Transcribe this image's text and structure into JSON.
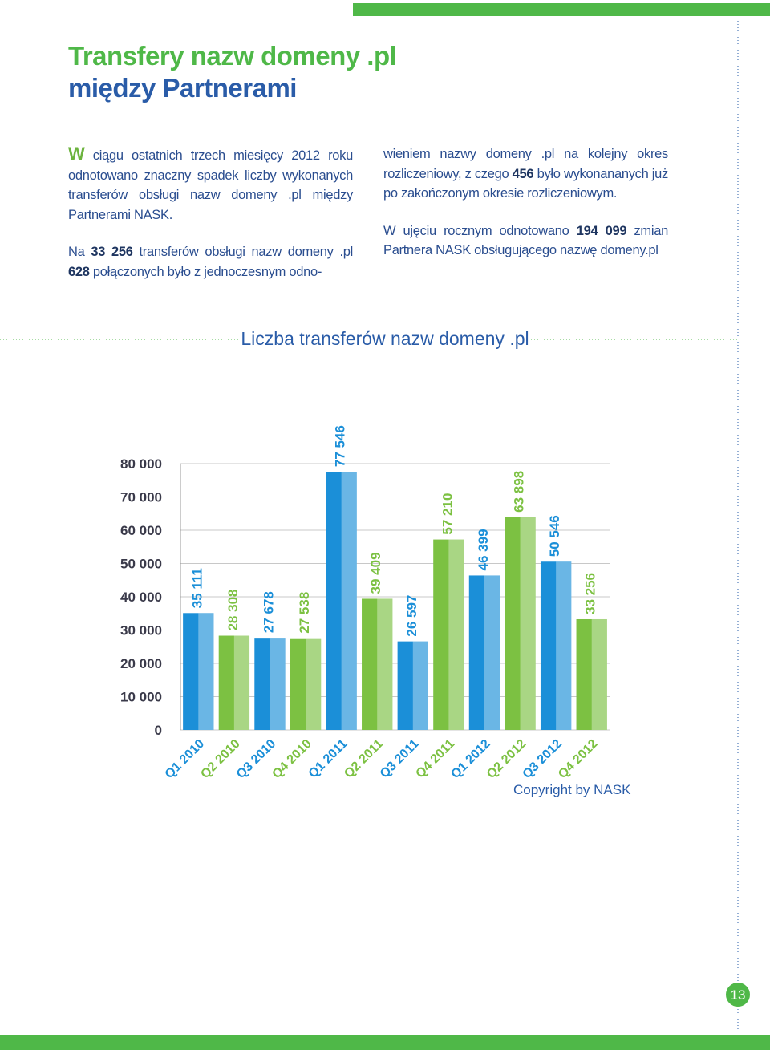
{
  "header": {
    "title_line1": "Transfery nazw domeny .pl",
    "title_line2": "między Partnerami"
  },
  "left_column": {
    "p1": {
      "dropcap": "W",
      "text": " ciągu ostatnich trzech miesięcy 2012 roku odnotowano znaczny spadek liczby wykonanych transferów obsługi nazw domeny .pl między Partnerami NASK."
    },
    "p2": [
      "Na ",
      "33 256",
      " transferów obsługi nazw domeny .pl ",
      "628",
      " połączonych było z jednoczesnym odno-"
    ]
  },
  "right_column": {
    "p1": [
      "wieniem nazwy domeny .pl na kolejny okres rozliczeniowy, z czego ",
      "456",
      " było wykonananych już po zakończonym okresie rozliczeniowym."
    ],
    "p2": [
      "W ujęciu rocznym odnotowano ",
      "194 099",
      " zmian Partnera NASK obsługującego nazwę domeny.pl"
    ]
  },
  "chart_data": {
    "type": "bar",
    "title": "Liczba transferów nazw domeny .pl",
    "categories": [
      "Q1 2010",
      "Q2 2010",
      "Q3 2010",
      "Q4 2010",
      "Q1 2011",
      "Q2 2011",
      "Q3 2011",
      "Q4 2011",
      "Q1 2012",
      "Q2 2012",
      "Q3 2012",
      "Q4 2012"
    ],
    "values": [
      35111,
      28308,
      27678,
      27538,
      77546,
      39409,
      26597,
      57210,
      46399,
      63898,
      50546,
      33256
    ],
    "value_labels": [
      "35 111",
      "28 308",
      "27 678",
      "27 538",
      "77 546",
      "39 409",
      "26 597",
      "57 210",
      "46 399",
      "63 898",
      "50 546",
      "33 256"
    ],
    "colors": [
      "#1b8fd8",
      "#7cc142"
    ],
    "ylim": [
      0,
      80000
    ],
    "yticks": [
      0,
      {
        "value": 10000,
        "label": "10 000"
      },
      {
        "value": 20000,
        "label": "20 000"
      },
      {
        "value": 30000,
        "label": "30 000"
      },
      {
        "value": 40000,
        "label": "40 000"
      },
      {
        "value": 50000,
        "label": "50 000"
      },
      {
        "value": 60000,
        "label": "60 000"
      },
      {
        "value": 70000,
        "label": "70 000"
      },
      {
        "value": 80000,
        "label": "80 000"
      }
    ],
    "grid": true
  },
  "footer": {
    "copyright": "Copyright by NASK",
    "page_number": "13"
  }
}
